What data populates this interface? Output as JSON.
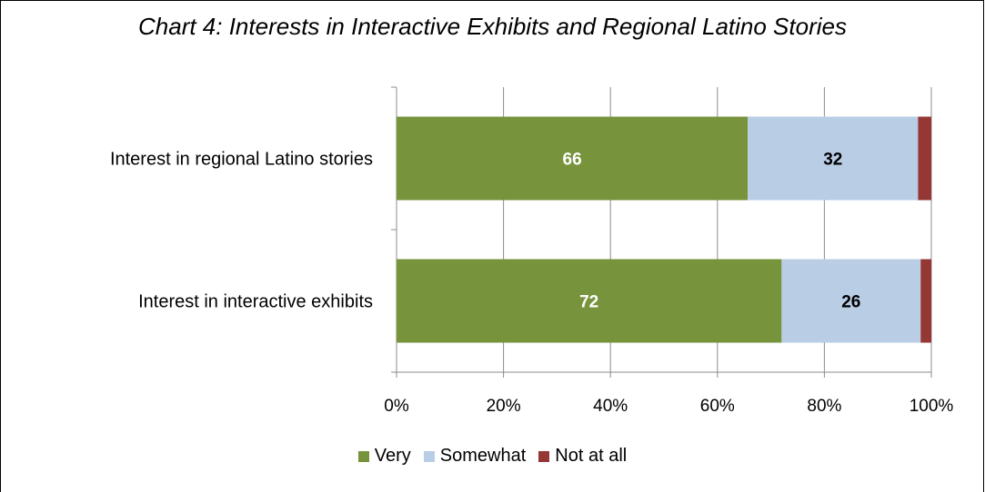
{
  "chart_data": {
    "type": "bar",
    "orientation": "horizontal",
    "stacked": "percent",
    "title": "Chart 4: Interests in Interactive Exhibits and Regional Latino Stories",
    "categories": [
      "Interest in regional Latino stories",
      "Interest in interactive exhibits"
    ],
    "series": [
      {
        "name": "Very",
        "values": [
          66,
          72
        ],
        "color": "#77933C",
        "label_color": "#ffffff",
        "show_labels": true
      },
      {
        "name": "Somewhat",
        "values": [
          32,
          26
        ],
        "color": "#B9CDE5",
        "label_color": "#000000",
        "show_labels": true
      },
      {
        "name": "Not at all",
        "values": [
          2.5,
          2
        ],
        "color": "#953735",
        "label_color": "#000000",
        "show_labels": false
      }
    ],
    "xlim": [
      0,
      100
    ],
    "x_ticks": [
      "0%",
      "20%",
      "40%",
      "60%",
      "80%",
      "100%"
    ],
    "grid": "vertical",
    "legend_position": "bottom"
  }
}
